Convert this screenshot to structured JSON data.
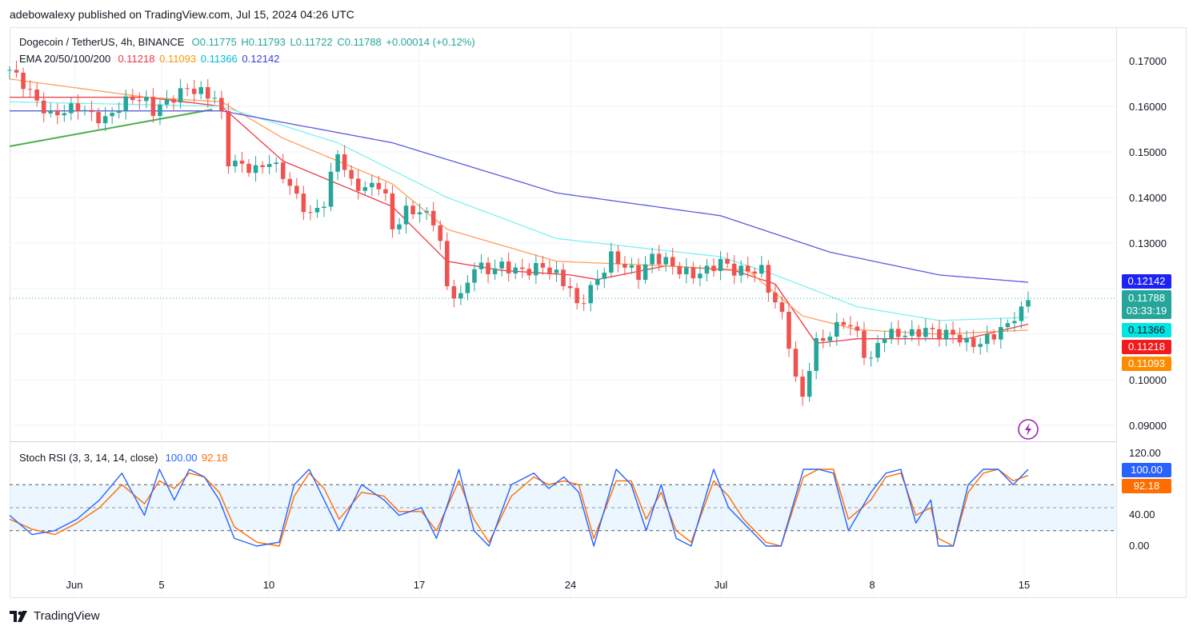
{
  "header": {
    "published": "adebowalexy published on TradingView.com, Jul 15, 2024 04:26 UTC"
  },
  "legend": {
    "symbol": "Dogecoin / TetherUS, 4h, BINANCE",
    "o": "O0.11775",
    "h": "H0.11793",
    "l": "L0.11722",
    "c": "C0.11788",
    "change": "+0.00014 (+0.12%)",
    "ema_label": "EMA 20/50/100/200",
    "ema_values": [
      "0.11218",
      "0.11093",
      "0.11366",
      "0.12142"
    ]
  },
  "stoch": {
    "label": "Stoch RSI (3, 3, 14, 14, close)",
    "k_value": "100.00",
    "d_value": "92.18",
    "axis": [
      "120.00",
      "40.00",
      "0.00"
    ]
  },
  "price_axis": [
    "0.17000",
    "0.16000",
    "0.15000",
    "0.14000",
    "0.13000",
    "0.10000",
    "0.09000"
  ],
  "price_tags": {
    "ema200": "0.12142",
    "last": "0.11788",
    "countdown": "03:33:19",
    "ema100": "0.11366",
    "ema20": "0.11218",
    "ema50": "0.11093",
    "k": "100.00",
    "d": "92.18"
  },
  "time_axis": [
    "Jun",
    "5",
    "10",
    "17",
    "24",
    "Jul",
    "8",
    "15"
  ],
  "brand": "TradingView",
  "colors": {
    "up": "#26a69a",
    "down": "#ef5350",
    "ema20": "#f23645",
    "ema50": "#ff9800",
    "ema100": "#00e5e5",
    "ema200": "#3f3fd6",
    "trendline": "#4caf50",
    "stoch_k": "#2962ff",
    "stoch_d": "#ff6d00"
  },
  "chart_data": {
    "type": "candlestick",
    "timeframe": "4h",
    "y_axis_range": [
      0.088,
      0.172
    ],
    "series_path": [
      [
        0,
        0.168
      ],
      [
        2,
        0.165
      ],
      [
        4,
        0.161
      ],
      [
        6,
        0.158
      ],
      [
        8,
        0.159
      ],
      [
        10,
        0.16
      ],
      [
        12,
        0.158
      ],
      [
        14,
        0.157
      ],
      [
        16,
        0.16
      ],
      [
        18,
        0.162
      ],
      [
        20,
        0.161
      ],
      [
        21,
        0.159
      ],
      [
        24,
        0.162
      ],
      [
        26,
        0.164
      ],
      [
        28,
        0.163
      ],
      [
        30,
        0.162
      ],
      [
        31,
        0.158
      ],
      [
        32,
        0.148
      ],
      [
        34,
        0.147
      ],
      [
        36,
        0.146
      ],
      [
        38,
        0.148
      ],
      [
        40,
        0.145
      ],
      [
        42,
        0.14
      ],
      [
        44,
        0.136
      ],
      [
        46,
        0.139
      ],
      [
        48,
        0.15
      ],
      [
        50,
        0.143
      ],
      [
        52,
        0.142
      ],
      [
        54,
        0.143
      ],
      [
        55,
        0.14
      ],
      [
        56,
        0.133
      ],
      [
        58,
        0.137
      ],
      [
        60,
        0.137
      ],
      [
        62,
        0.135
      ],
      [
        63,
        0.13
      ],
      [
        64,
        0.12
      ],
      [
        66,
        0.118
      ],
      [
        68,
        0.125
      ],
      [
        70,
        0.124
      ],
      [
        72,
        0.125
      ],
      [
        74,
        0.124
      ],
      [
        76,
        0.124
      ],
      [
        78,
        0.125
      ],
      [
        80,
        0.123
      ],
      [
        82,
        0.12
      ],
      [
        83,
        0.116
      ],
      [
        84,
        0.118
      ],
      [
        86,
        0.122
      ],
      [
        88,
        0.127
      ],
      [
        90,
        0.125
      ],
      [
        92,
        0.123
      ],
      [
        94,
        0.127
      ],
      [
        96,
        0.126
      ],
      [
        98,
        0.124
      ],
      [
        100,
        0.123
      ],
      [
        102,
        0.124
      ],
      [
        104,
        0.126
      ],
      [
        106,
        0.124
      ],
      [
        108,
        0.124
      ],
      [
        110,
        0.124
      ],
      [
        111,
        0.12
      ],
      [
        112,
        0.117
      ],
      [
        113,
        0.114
      ],
      [
        114,
        0.108
      ],
      [
        115,
        0.1
      ],
      [
        116,
        0.096
      ],
      [
        117,
        0.103
      ],
      [
        118,
        0.108
      ],
      [
        120,
        0.11
      ],
      [
        122,
        0.113
      ],
      [
        124,
        0.11
      ],
      [
        125,
        0.106
      ],
      [
        126,
        0.104
      ],
      [
        127,
        0.108
      ],
      [
        128,
        0.11
      ],
      [
        130,
        0.11
      ],
      [
        132,
        0.11
      ],
      [
        134,
        0.111
      ],
      [
        136,
        0.11
      ],
      [
        138,
        0.11
      ],
      [
        140,
        0.108
      ],
      [
        142,
        0.108
      ],
      [
        144,
        0.11
      ],
      [
        146,
        0.112
      ],
      [
        147,
        0.114
      ],
      [
        148,
        0.115
      ],
      [
        149,
        0.1178
      ]
    ],
    "ema": {
      "20": [
        [
          0,
          0.162
        ],
        [
          20,
          0.162
        ],
        [
          31,
          0.16
        ],
        [
          40,
          0.148
        ],
        [
          56,
          0.138
        ],
        [
          64,
          0.126
        ],
        [
          72,
          0.124
        ],
        [
          82,
          0.123
        ],
        [
          86,
          0.122
        ],
        [
          96,
          0.125
        ],
        [
          106,
          0.124
        ],
        [
          112,
          0.121
        ],
        [
          118,
          0.108
        ],
        [
          124,
          0.109
        ],
        [
          140,
          0.109
        ],
        [
          149,
          0.1122
        ]
      ],
      "50": [
        [
          0,
          0.166
        ],
        [
          20,
          0.162
        ],
        [
          31,
          0.161
        ],
        [
          40,
          0.153
        ],
        [
          56,
          0.143
        ],
        [
          64,
          0.133
        ],
        [
          80,
          0.126
        ],
        [
          96,
          0.125
        ],
        [
          108,
          0.124
        ],
        [
          116,
          0.114
        ],
        [
          124,
          0.111
        ],
        [
          136,
          0.11
        ],
        [
          149,
          0.1109
        ]
      ],
      "100": [
        [
          0,
          0.161
        ],
        [
          31,
          0.16
        ],
        [
          48,
          0.152
        ],
        [
          64,
          0.14
        ],
        [
          80,
          0.131
        ],
        [
          104,
          0.127
        ],
        [
          112,
          0.123
        ],
        [
          124,
          0.116
        ],
        [
          136,
          0.113
        ],
        [
          149,
          0.1137
        ]
      ],
      "200": [
        [
          0,
          0.159
        ],
        [
          31,
          0.159
        ],
        [
          56,
          0.152
        ],
        [
          80,
          0.141
        ],
        [
          104,
          0.136
        ],
        [
          120,
          0.128
        ],
        [
          136,
          0.123
        ],
        [
          149,
          0.1214
        ]
      ]
    },
    "stoch_rsi": {
      "range": [
        0,
        120
      ],
      "bands": [
        20,
        50,
        80
      ],
      "k": [
        [
          0,
          40
        ],
        [
          3,
          15
        ],
        [
          6,
          20
        ],
        [
          9,
          35
        ],
        [
          12,
          60
        ],
        [
          15,
          95
        ],
        [
          18,
          40
        ],
        [
          20,
          100
        ],
        [
          22,
          60
        ],
        [
          24,
          100
        ],
        [
          26,
          90
        ],
        [
          28,
          60
        ],
        [
          30,
          10
        ],
        [
          33,
          0
        ],
        [
          36,
          5
        ],
        [
          38,
          80
        ],
        [
          40,
          100
        ],
        [
          42,
          60
        ],
        [
          44,
          20
        ],
        [
          47,
          80
        ],
        [
          50,
          60
        ],
        [
          52,
          40
        ],
        [
          55,
          50
        ],
        [
          57,
          10
        ],
        [
          60,
          100
        ],
        [
          62,
          20
        ],
        [
          64,
          0
        ],
        [
          67,
          80
        ],
        [
          70,
          95
        ],
        [
          72,
          75
        ],
        [
          74,
          90
        ],
        [
          76,
          70
        ],
        [
          78,
          0
        ],
        [
          81,
          100
        ],
        [
          83,
          80
        ],
        [
          85,
          20
        ],
        [
          87,
          80
        ],
        [
          89,
          10
        ],
        [
          91,
          0
        ],
        [
          94,
          100
        ],
        [
          96,
          50
        ],
        [
          98,
          30
        ],
        [
          101,
          0
        ],
        [
          103,
          0
        ],
        [
          106,
          100
        ],
        [
          108,
          100
        ],
        [
          110,
          95
        ],
        [
          112,
          20
        ],
        [
          115,
          70
        ],
        [
          117,
          95
        ],
        [
          119,
          100
        ],
        [
          121,
          30
        ],
        [
          123,
          60
        ],
        [
          124,
          0
        ],
        [
          126,
          0
        ],
        [
          128,
          80
        ],
        [
          130,
          100
        ],
        [
          132,
          100
        ],
        [
          134,
          80
        ],
        [
          136,
          100
        ]
      ],
      "d": [
        [
          0,
          35
        ],
        [
          3,
          22
        ],
        [
          6,
          15
        ],
        [
          9,
          30
        ],
        [
          12,
          50
        ],
        [
          15,
          80
        ],
        [
          18,
          55
        ],
        [
          20,
          85
        ],
        [
          22,
          75
        ],
        [
          24,
          95
        ],
        [
          26,
          90
        ],
        [
          28,
          70
        ],
        [
          30,
          25
        ],
        [
          33,
          5
        ],
        [
          36,
          0
        ],
        [
          38,
          65
        ],
        [
          40,
          95
        ],
        [
          42,
          75
        ],
        [
          44,
          35
        ],
        [
          47,
          70
        ],
        [
          50,
          65
        ],
        [
          52,
          45
        ],
        [
          55,
          45
        ],
        [
          57,
          20
        ],
        [
          60,
          85
        ],
        [
          62,
          35
        ],
        [
          64,
          5
        ],
        [
          67,
          65
        ],
        [
          70,
          90
        ],
        [
          72,
          80
        ],
        [
          74,
          85
        ],
        [
          76,
          80
        ],
        [
          78,
          10
        ],
        [
          81,
          85
        ],
        [
          83,
          85
        ],
        [
          85,
          35
        ],
        [
          87,
          70
        ],
        [
          89,
          20
        ],
        [
          91,
          5
        ],
        [
          94,
          85
        ],
        [
          96,
          65
        ],
        [
          98,
          35
        ],
        [
          101,
          5
        ],
        [
          103,
          0
        ],
        [
          106,
          90
        ],
        [
          108,
          100
        ],
        [
          110,
          100
        ],
        [
          112,
          35
        ],
        [
          115,
          60
        ],
        [
          117,
          90
        ],
        [
          119,
          95
        ],
        [
          121,
          40
        ],
        [
          123,
          50
        ],
        [
          124,
          10
        ],
        [
          126,
          0
        ],
        [
          128,
          70
        ],
        [
          130,
          95
        ],
        [
          132,
          100
        ],
        [
          134,
          85
        ],
        [
          136,
          92
        ]
      ]
    }
  }
}
